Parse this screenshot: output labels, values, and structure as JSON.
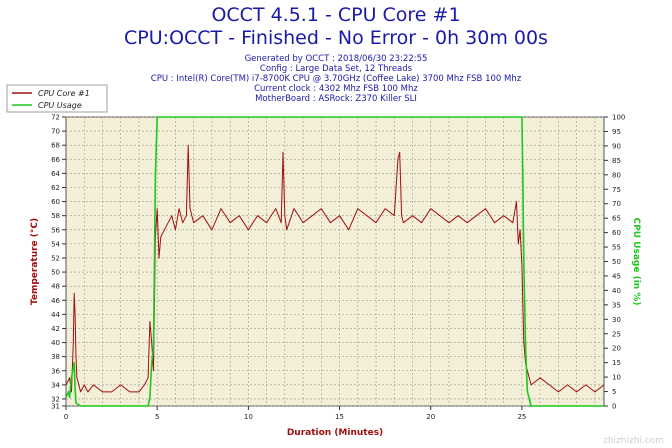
{
  "header": {
    "title_line1": "OCCT 4.5.1 - CPU Core #1",
    "title_line2": "CPU:OCCT - Finished - No Error - 0h 30m 00s",
    "info_lines": [
      "Generated by OCCT : 2018/06/30 23:22:55",
      "Config : Large Data Set, 12 Threads",
      "CPU : Intel(R) Core(TM) i7-8700K CPU @ 3.70GHz (Coffee Lake) 3700 Mhz FSB 100 Mhz",
      "Current clock : 4302 Mhz FSB 100 Mhz",
      "MotherBoard : ASRock: Z370 Killer SLI"
    ]
  },
  "watermark": "zhizhizhi.com",
  "chart_data": {
    "type": "line",
    "xlabel": "Duration (Minutes)",
    "ylabel": "Temperature (°C)",
    "y2label": "CPU Usage (in %)",
    "xlim": [
      0,
      29.5
    ],
    "ylim": [
      31,
      72
    ],
    "y2lim": [
      0,
      100
    ],
    "x_ticks": [
      0,
      5,
      10,
      15,
      20,
      25
    ],
    "y_ticks": [
      31,
      32,
      34,
      36,
      38,
      40,
      42,
      44,
      46,
      48,
      50,
      52,
      54,
      56,
      58,
      60,
      62,
      64,
      66,
      68,
      70,
      72
    ],
    "y2_ticks": [
      0,
      5,
      10,
      15,
      20,
      25,
      30,
      35,
      40,
      45,
      50,
      55,
      60,
      65,
      70,
      75,
      80,
      85,
      90,
      95,
      100
    ],
    "grid": true,
    "legend_position": "top-left",
    "background_color": "#f3efd8",
    "series": [
      {
        "name": "CPU Core #1",
        "axis": "left",
        "color": "#a01010",
        "x": [
          0,
          0.2,
          0.3,
          0.4,
          0.45,
          0.5,
          0.55,
          0.6,
          0.7,
          0.8,
          1.0,
          1.2,
          1.5,
          2.0,
          2.5,
          3.0,
          3.5,
          4.0,
          4.3,
          4.5,
          4.6,
          4.7,
          4.8,
          4.9,
          5.0,
          5.1,
          5.2,
          5.4,
          5.6,
          5.8,
          6.0,
          6.2,
          6.4,
          6.6,
          6.7,
          6.8,
          7.0,
          7.5,
          8.0,
          8.5,
          9.0,
          9.5,
          10.0,
          10.5,
          11.0,
          11.5,
          11.8,
          11.9,
          12.0,
          12.1,
          12.5,
          13.0,
          13.5,
          14.0,
          14.5,
          15.0,
          15.5,
          16.0,
          16.5,
          17.0,
          17.5,
          18.0,
          18.2,
          18.3,
          18.4,
          18.5,
          19.0,
          19.5,
          20.0,
          20.5,
          21.0,
          21.5,
          22.0,
          22.5,
          23.0,
          23.5,
          24.0,
          24.5,
          24.7,
          24.8,
          24.9,
          25.0,
          25.1,
          25.2,
          25.3,
          25.5,
          26.0,
          26.5,
          27.0,
          27.5,
          28.0,
          28.5,
          29.0,
          29.5
        ],
        "values": [
          34,
          35,
          33,
          40,
          47,
          44,
          38,
          35,
          34,
          33,
          34,
          33,
          34,
          33,
          33,
          34,
          33,
          33,
          34,
          35,
          43,
          40,
          36,
          55,
          59,
          52,
          55,
          56,
          57,
          58,
          56,
          59,
          57,
          58,
          68,
          59,
          57,
          58,
          56,
          59,
          57,
          58,
          56,
          58,
          57,
          59,
          57,
          67,
          58,
          56,
          59,
          57,
          58,
          59,
          57,
          58,
          56,
          59,
          58,
          57,
          59,
          58,
          66,
          67,
          58,
          57,
          58,
          57,
          59,
          58,
          57,
          58,
          57,
          58,
          59,
          57,
          58,
          57,
          60,
          54,
          56,
          51,
          40,
          37,
          36,
          34,
          35,
          34,
          33,
          34,
          33,
          34,
          33,
          34
        ]
      },
      {
        "name": "CPU Usage",
        "axis": "right",
        "color": "#1ec81e",
        "x": [
          0,
          0.15,
          0.2,
          0.3,
          0.45,
          0.5,
          0.55,
          0.8,
          4.5,
          4.6,
          4.7,
          4.8,
          4.9,
          4.95,
          5.0,
          25.0,
          25.05,
          25.1,
          25.2,
          25.3,
          25.5,
          29.5
        ],
        "values": [
          3,
          5,
          3,
          10,
          15,
          6,
          1,
          0,
          0,
          3,
          15,
          20,
          80,
          90,
          100,
          100,
          80,
          50,
          20,
          5,
          0,
          0
        ]
      }
    ]
  }
}
